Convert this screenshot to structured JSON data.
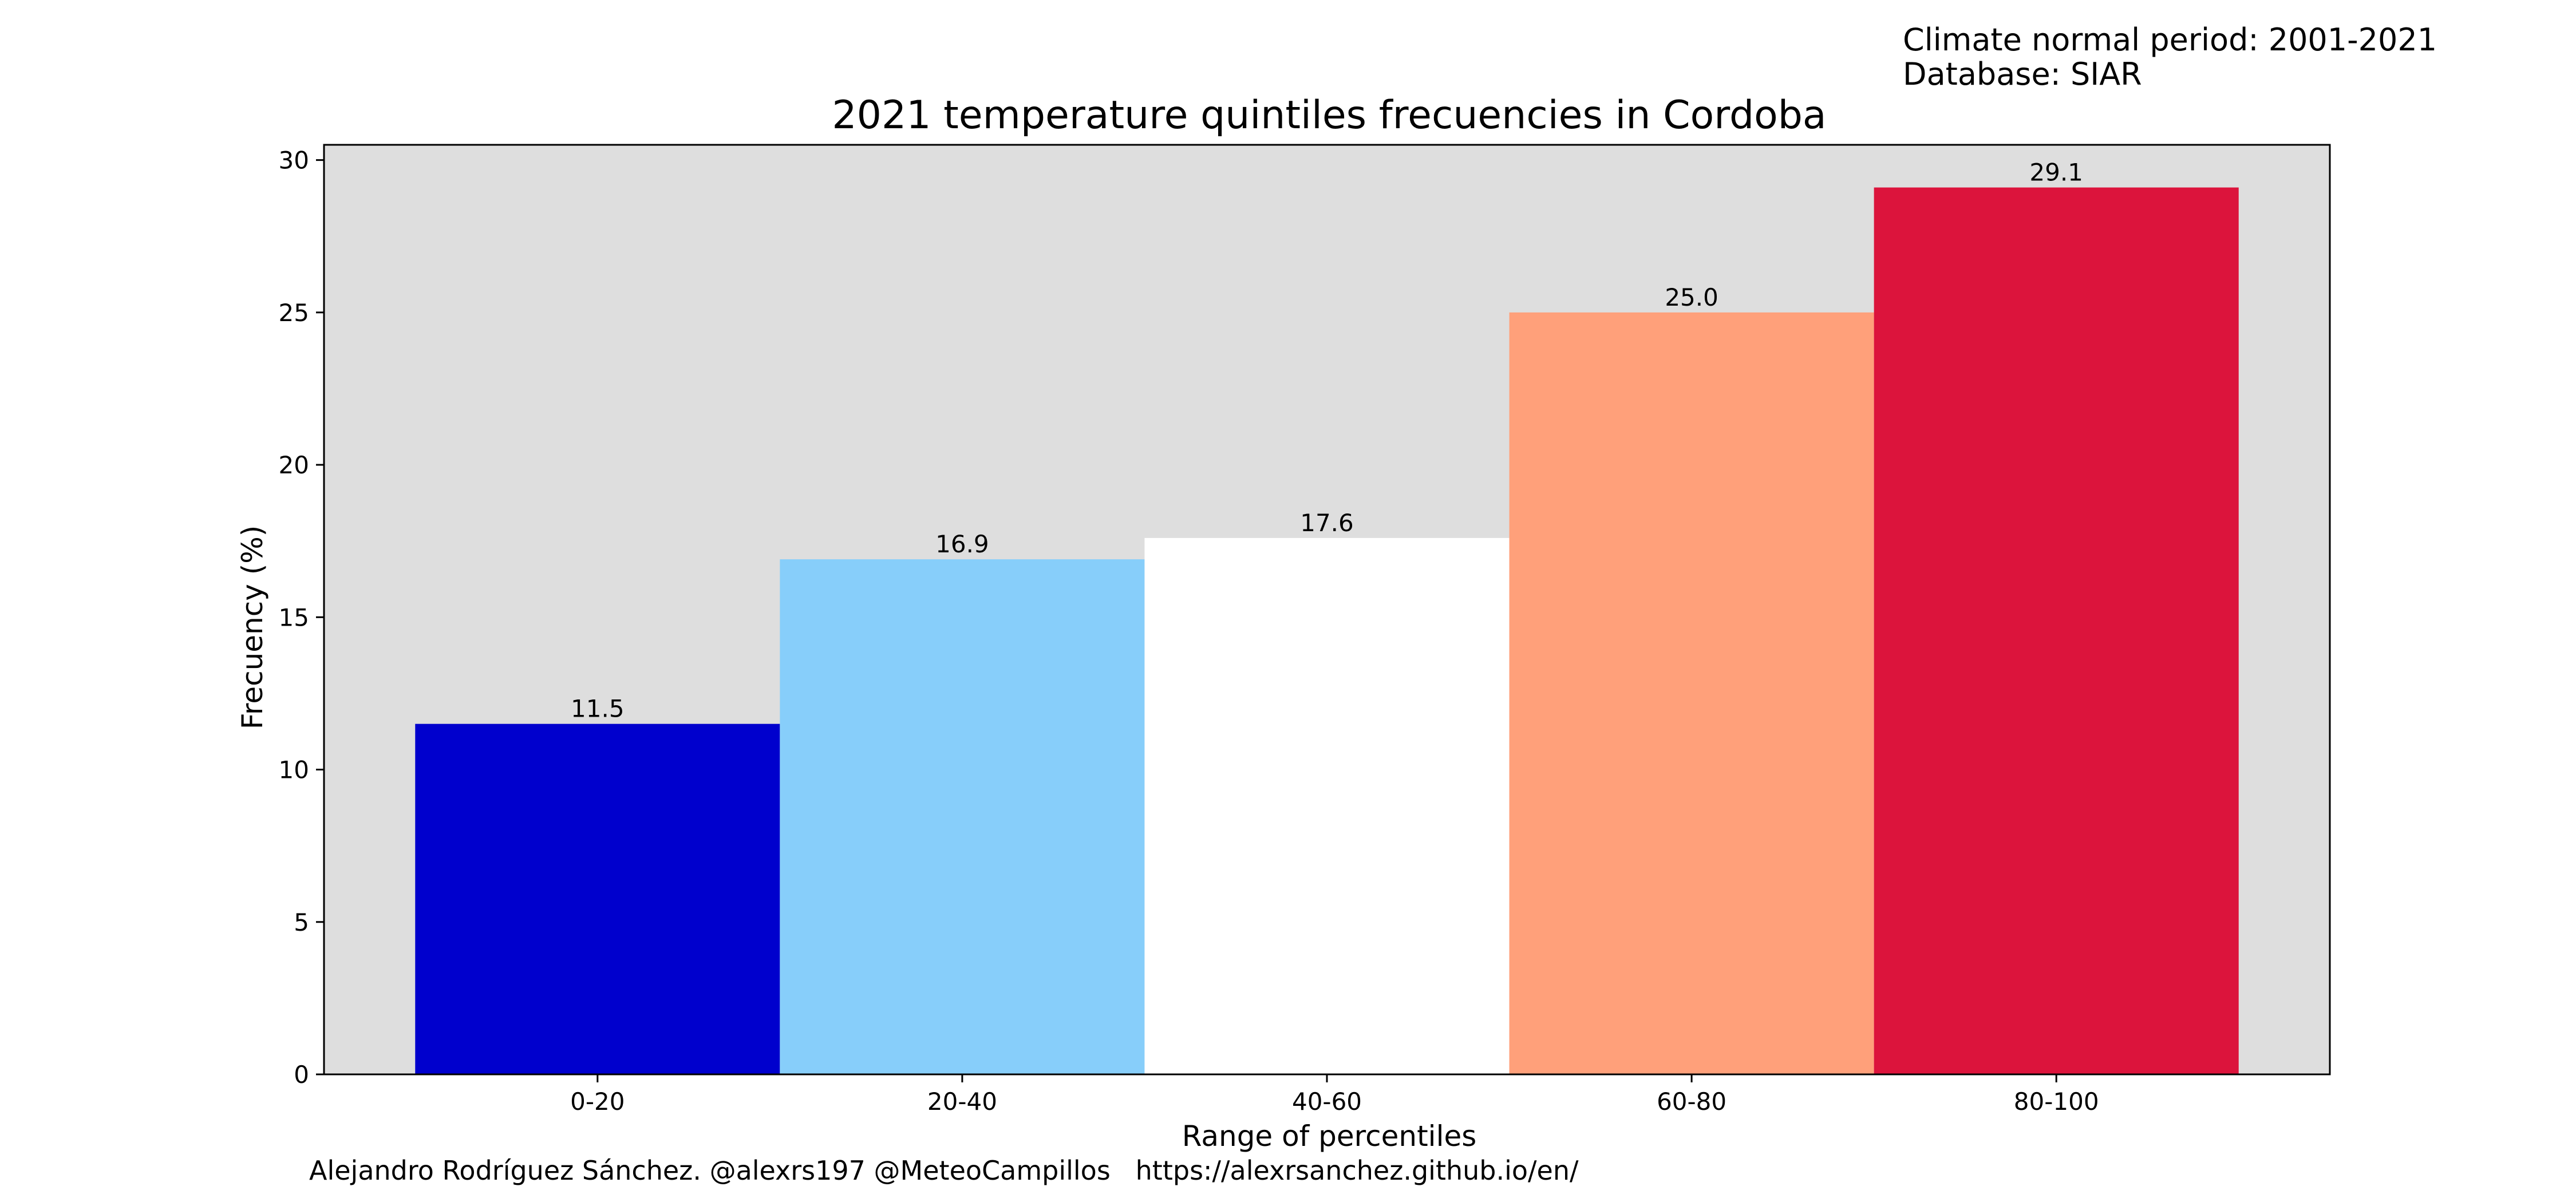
{
  "header": {
    "climate_normal": "Climate normal period: 2001-2021",
    "database": "Database: SIAR"
  },
  "footer": {
    "credits": "Alejandro Rodríguez Sánchez. @alexrs197 @MeteoCampillos   https://alexrsanchez.github.io/en/"
  },
  "chart_data": {
    "type": "bar",
    "title": "2021 temperature quintiles frecuencies in Cordoba",
    "xlabel": "Range of percentiles",
    "ylabel": "Frecuency (%)",
    "categories": [
      "0-20",
      "20-40",
      "40-60",
      "60-80",
      "80-100"
    ],
    "values": [
      11.5,
      16.9,
      17.6,
      25.0,
      29.1
    ],
    "value_labels": [
      "11.5",
      "16.9",
      "17.6",
      "25.0",
      "29.1"
    ],
    "bar_colors": [
      "#0000cd",
      "#87cefa",
      "#ffffff",
      "#ffa07a",
      "#dc143c"
    ],
    "ylim": [
      0,
      30.5
    ],
    "yticks": [
      0,
      5,
      10,
      15,
      20,
      25,
      30
    ],
    "plot_background": "#dedede",
    "grid": false,
    "legend": "none"
  }
}
